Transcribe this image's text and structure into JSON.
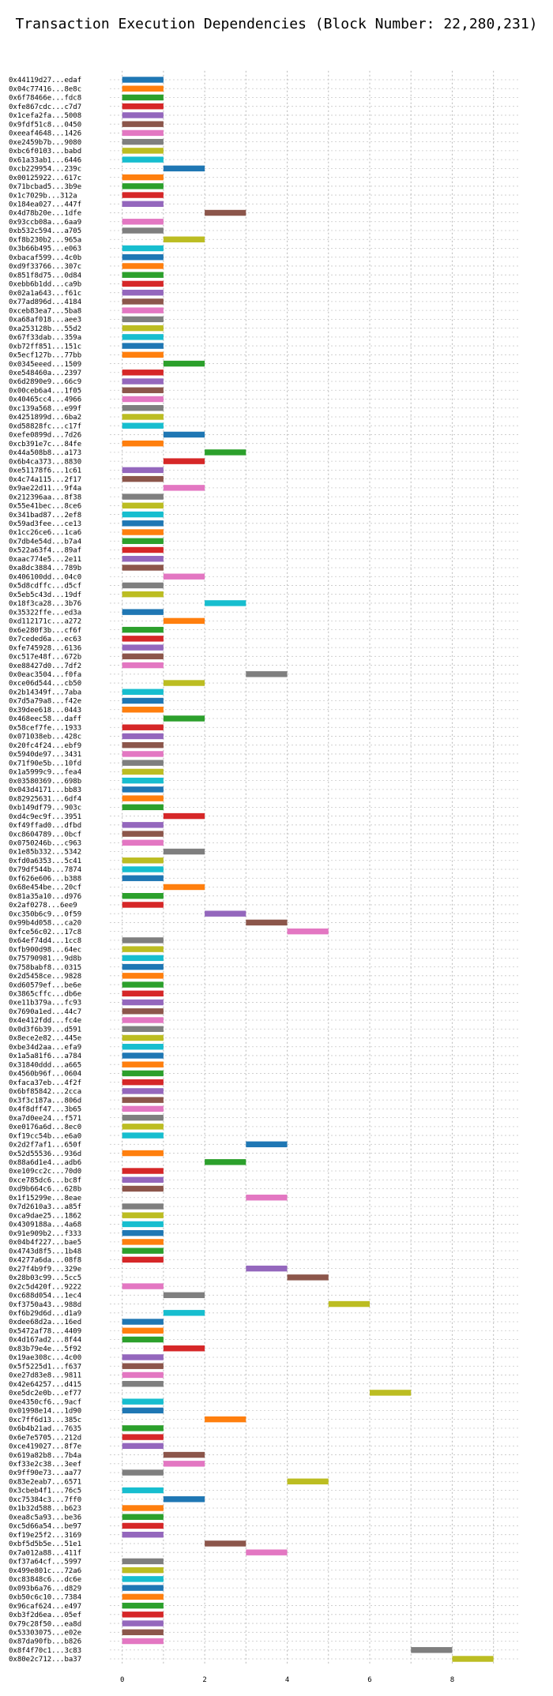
{
  "chart_data": {
    "type": "bar",
    "orientation": "horizontal",
    "chart_style": "gantt",
    "title": "Transaction Execution Dependencies (Block Number: 22,280,231)",
    "xlabel": "",
    "ylabel": "",
    "xlim": [
      -0.3,
      9.6
    ],
    "x_ticks": [
      "0",
      "2",
      "4",
      "6",
      "8"
    ],
    "grid": true,
    "grid_style": "dotted",
    "legend": "none",
    "palette": [
      "#1f77b4",
      "#ff7f0e",
      "#2ca02c",
      "#d62728",
      "#9467bd",
      "#8c564b",
      "#e377c2",
      "#7f7f7f",
      "#bcbd22",
      "#17becf"
    ],
    "transactions": [
      {
        "label": "0x44119d27...edaf",
        "start": 0,
        "end": 1
      },
      {
        "label": "0x04c77416...8e8c",
        "start": 0,
        "end": 1
      },
      {
        "label": "0x6f78466e...fdc8",
        "start": 0,
        "end": 1
      },
      {
        "label": "0xfe867cdc...c7d7",
        "start": 0,
        "end": 1
      },
      {
        "label": "0x1cefa2fa...5008",
        "start": 0,
        "end": 1
      },
      {
        "label": "0x9fdf51c8...0450",
        "start": 0,
        "end": 1
      },
      {
        "label": "0xeeaf4648...1426",
        "start": 0,
        "end": 1
      },
      {
        "label": "0xe2459b7b...9080",
        "start": 0,
        "end": 1
      },
      {
        "label": "0xbc6f0103...babd",
        "start": 0,
        "end": 1
      },
      {
        "label": "0x61a33ab1...6446",
        "start": 0,
        "end": 1
      },
      {
        "label": "0xcb229954...239c",
        "start": 1,
        "end": 2
      },
      {
        "label": "0x00125922...617c",
        "start": 0,
        "end": 1
      },
      {
        "label": "0x71bcbad5...3b9e",
        "start": 0,
        "end": 1
      },
      {
        "label": "0x1c7029b...312a",
        "start": 0,
        "end": 1
      },
      {
        "label": "0x184ea027...447f",
        "start": 0,
        "end": 1
      },
      {
        "label": "0x4d78b20e...1dfe",
        "start": 2,
        "end": 3
      },
      {
        "label": "0x93ccb08a...6aa9",
        "start": 0,
        "end": 1
      },
      {
        "label": "0xb532c594...a705",
        "start": 0,
        "end": 1
      },
      {
        "label": "0xf8b230b2...965a",
        "start": 1,
        "end": 2
      },
      {
        "label": "0x3b66b495...e063",
        "start": 0,
        "end": 1
      },
      {
        "label": "0xbacaf599...4c0b",
        "start": 0,
        "end": 1
      },
      {
        "label": "0xd9f33766...307c",
        "start": 0,
        "end": 1
      },
      {
        "label": "0x851f8d75...0d84",
        "start": 0,
        "end": 1
      },
      {
        "label": "0xebb6b1dd...ca9b",
        "start": 0,
        "end": 1
      },
      {
        "label": "0x02a1a643...f61c",
        "start": 0,
        "end": 1
      },
      {
        "label": "0x77ad896d...4184",
        "start": 0,
        "end": 1
      },
      {
        "label": "0xceb83ea7...5ba8",
        "start": 0,
        "end": 1
      },
      {
        "label": "0xa68af018...aee3",
        "start": 0,
        "end": 1
      },
      {
        "label": "0xa253128b...55d2",
        "start": 0,
        "end": 1
      },
      {
        "label": "0x67f33dab...359a",
        "start": 0,
        "end": 1
      },
      {
        "label": "0xb72ff851...151c",
        "start": 0,
        "end": 1
      },
      {
        "label": "0x5ecf127b...77bb",
        "start": 0,
        "end": 1
      },
      {
        "label": "0x0345eeed...1509",
        "start": 1,
        "end": 2
      },
      {
        "label": "0xe548460a...2397",
        "start": 0,
        "end": 1
      },
      {
        "label": "0x6d2890e9...66c9",
        "start": 0,
        "end": 1
      },
      {
        "label": "0x00ceb6a4...1f05",
        "start": 0,
        "end": 1
      },
      {
        "label": "0x40465cc4...4966",
        "start": 0,
        "end": 1
      },
      {
        "label": "0xc139a568...e99f",
        "start": 0,
        "end": 1
      },
      {
        "label": "0x4251899d...6ba2",
        "start": 0,
        "end": 1
      },
      {
        "label": "0xd58828fc...c17f",
        "start": 0,
        "end": 1
      },
      {
        "label": "0xefe0899d...7d26",
        "start": 1,
        "end": 2
      },
      {
        "label": "0xcb391e7c...84fe",
        "start": 0,
        "end": 1
      },
      {
        "label": "0x44a508b8...a173",
        "start": 2,
        "end": 3
      },
      {
        "label": "0x6b4ca373...8830",
        "start": 1,
        "end": 2
      },
      {
        "label": "0xe51178f6...1c61",
        "start": 0,
        "end": 1
      },
      {
        "label": "0x4c74a115...2f17",
        "start": 0,
        "end": 1
      },
      {
        "label": "0x9ae22d11...9f4a",
        "start": 1,
        "end": 2
      },
      {
        "label": "0x212396aa...8f38",
        "start": 0,
        "end": 1
      },
      {
        "label": "0x55e41bec...8ce6",
        "start": 0,
        "end": 1
      },
      {
        "label": "0x341bad87...2ef8",
        "start": 0,
        "end": 1
      },
      {
        "label": "0x59ad3fee...ce13",
        "start": 0,
        "end": 1
      },
      {
        "label": "0x1cc26ce6...1ca6",
        "start": 0,
        "end": 1
      },
      {
        "label": "0x7db4e54d...b7a4",
        "start": 0,
        "end": 1
      },
      {
        "label": "0x522a63f4...89af",
        "start": 0,
        "end": 1
      },
      {
        "label": "0xaac774e5...2e11",
        "start": 0,
        "end": 1
      },
      {
        "label": "0xa8dc3884...789b",
        "start": 0,
        "end": 1
      },
      {
        "label": "0x406100dd...04c0",
        "start": 1,
        "end": 2
      },
      {
        "label": "0x5d8cdffc...d5cf",
        "start": 0,
        "end": 1
      },
      {
        "label": "0x5eb5c43d...19df",
        "start": 0,
        "end": 1
      },
      {
        "label": "0x18f3ca28...3b76",
        "start": 2,
        "end": 3
      },
      {
        "label": "0x35322ffe...ed3a",
        "start": 0,
        "end": 1
      },
      {
        "label": "0xd112171c...a272",
        "start": 1,
        "end": 2
      },
      {
        "label": "0x6e280f3b...cf6f",
        "start": 0,
        "end": 1
      },
      {
        "label": "0x7ceded6a...ec63",
        "start": 0,
        "end": 1
      },
      {
        "label": "0xfe745928...6136",
        "start": 0,
        "end": 1
      },
      {
        "label": "0xc517e48f...672b",
        "start": 0,
        "end": 1
      },
      {
        "label": "0xe88427d0...7df2",
        "start": 0,
        "end": 1
      },
      {
        "label": "0x0eac3504...f0fa",
        "start": 3,
        "end": 4
      },
      {
        "label": "0xce06d544...cb50",
        "start": 1,
        "end": 2
      },
      {
        "label": "0x2b14349f...7aba",
        "start": 0,
        "end": 1
      },
      {
        "label": "0x7d5a79a8...f42e",
        "start": 0,
        "end": 1
      },
      {
        "label": "0x39dee618...0443",
        "start": 0,
        "end": 1
      },
      {
        "label": "0x468eec58...daff",
        "start": 1,
        "end": 2
      },
      {
        "label": "0x58cef7fe...1933",
        "start": 0,
        "end": 1
      },
      {
        "label": "0x071038eb...428c",
        "start": 0,
        "end": 1
      },
      {
        "label": "0x20fc4f24...ebf9",
        "start": 0,
        "end": 1
      },
      {
        "label": "0x5940de97...3431",
        "start": 0,
        "end": 1
      },
      {
        "label": "0x71f90e5b...10fd",
        "start": 0,
        "end": 1
      },
      {
        "label": "0x1a5999c9...fea4",
        "start": 0,
        "end": 1
      },
      {
        "label": "0x03580369...698b",
        "start": 0,
        "end": 1
      },
      {
        "label": "0x043d4171...bb83",
        "start": 0,
        "end": 1
      },
      {
        "label": "0x82925631...6df4",
        "start": 0,
        "end": 1
      },
      {
        "label": "0xb149df79...903c",
        "start": 0,
        "end": 1
      },
      {
        "label": "0xd4c9ec9f...3951",
        "start": 1,
        "end": 2
      },
      {
        "label": "0xf49ffad0...dfbd",
        "start": 0,
        "end": 1
      },
      {
        "label": "0xc8604789...0bcf",
        "start": 0,
        "end": 1
      },
      {
        "label": "0x0750246b...c963",
        "start": 0,
        "end": 1
      },
      {
        "label": "0x1e85b332...5342",
        "start": 1,
        "end": 2
      },
      {
        "label": "0xfd0a6353...5c41",
        "start": 0,
        "end": 1
      },
      {
        "label": "0x79df544b...7874",
        "start": 0,
        "end": 1
      },
      {
        "label": "0xf626e606...b388",
        "start": 0,
        "end": 1
      },
      {
        "label": "0x68e454be...20cf",
        "start": 1,
        "end": 2
      },
      {
        "label": "0x81a35a10...d976",
        "start": 0,
        "end": 1
      },
      {
        "label": "0x2af0278...6ee9",
        "start": 0,
        "end": 1
      },
      {
        "label": "0xc350b6c9...0f59",
        "start": 2,
        "end": 3
      },
      {
        "label": "0x99b4d058...ca20",
        "start": 3,
        "end": 4
      },
      {
        "label": "0xfce56c02...17c8",
        "start": 4,
        "end": 5
      },
      {
        "label": "0x64ef74d4...1cc8",
        "start": 0,
        "end": 1
      },
      {
        "label": "0xfb900d98...64ec",
        "start": 0,
        "end": 1
      },
      {
        "label": "0x75790981...9d8b",
        "start": 0,
        "end": 1
      },
      {
        "label": "0x758babf8...0315",
        "start": 0,
        "end": 1
      },
      {
        "label": "0x2d5458ce...9828",
        "start": 0,
        "end": 1
      },
      {
        "label": "0xd60579ef...be6e",
        "start": 0,
        "end": 1
      },
      {
        "label": "0x3865cffc...db6e",
        "start": 0,
        "end": 1
      },
      {
        "label": "0xe11b379a...fc93",
        "start": 0,
        "end": 1
      },
      {
        "label": "0x7690a1ed...44c7",
        "start": 0,
        "end": 1
      },
      {
        "label": "0x4e412fdd...fc4e",
        "start": 0,
        "end": 1
      },
      {
        "label": "0x0d3f6b39...d591",
        "start": 0,
        "end": 1
      },
      {
        "label": "0x8ece2e82...445e",
        "start": 0,
        "end": 1
      },
      {
        "label": "0xbe34d2aa...efa9",
        "start": 0,
        "end": 1
      },
      {
        "label": "0x1a5a81f6...a784",
        "start": 0,
        "end": 1
      },
      {
        "label": "0x31840ddd...a665",
        "start": 0,
        "end": 1
      },
      {
        "label": "0x4560b96f...0604",
        "start": 0,
        "end": 1
      },
      {
        "label": "0xfaca37eb...4f2f",
        "start": 0,
        "end": 1
      },
      {
        "label": "0x6bf85842...2cca",
        "start": 0,
        "end": 1
      },
      {
        "label": "0x3f3c187a...806d",
        "start": 0,
        "end": 1
      },
      {
        "label": "0x4f8dff47...3b65",
        "start": 0,
        "end": 1
      },
      {
        "label": "0xa7d0ee24...f571",
        "start": 0,
        "end": 1
      },
      {
        "label": "0xe0176a6d...8ec0",
        "start": 0,
        "end": 1
      },
      {
        "label": "0xf19cc54b...e6a0",
        "start": 0,
        "end": 1
      },
      {
        "label": "0x2d2f7af1...650f",
        "start": 3,
        "end": 4
      },
      {
        "label": "0x52d55536...936d",
        "start": 0,
        "end": 1
      },
      {
        "label": "0x88a6d1e4...adb6",
        "start": 2,
        "end": 3
      },
      {
        "label": "0xe109cc2c...70d0",
        "start": 0,
        "end": 1
      },
      {
        "label": "0xce785dc6...bc8f",
        "start": 0,
        "end": 1
      },
      {
        "label": "0xd9b664c6...628b",
        "start": 0,
        "end": 1
      },
      {
        "label": "0x1f15299e...8eae",
        "start": 3,
        "end": 4
      },
      {
        "label": "0x7d2610a3...a85f",
        "start": 0,
        "end": 1
      },
      {
        "label": "0xca9dae25...1862",
        "start": 0,
        "end": 1
      },
      {
        "label": "0x4309188a...4a68",
        "start": 0,
        "end": 1
      },
      {
        "label": "0x91e909b2...f333",
        "start": 0,
        "end": 1
      },
      {
        "label": "0x04b4f227...bae5",
        "start": 0,
        "end": 1
      },
      {
        "label": "0x4743d8f5...1b48",
        "start": 0,
        "end": 1
      },
      {
        "label": "0x4277a6da...08f8",
        "start": 0,
        "end": 1
      },
      {
        "label": "0x27f4b9f9...329e",
        "start": 3,
        "end": 4
      },
      {
        "label": "0x28b03c99...5cc5",
        "start": 4,
        "end": 5
      },
      {
        "label": "0x2c5d420f...9222",
        "start": 0,
        "end": 1
      },
      {
        "label": "0xc688d054...1ec4",
        "start": 1,
        "end": 2
      },
      {
        "label": "0xf3750a43...988d",
        "start": 5,
        "end": 6
      },
      {
        "label": "0xf6b29d6d...d1a9",
        "start": 1,
        "end": 2
      },
      {
        "label": "0xdee68d2a...16ed",
        "start": 0,
        "end": 1
      },
      {
        "label": "0x5472af78...4409",
        "start": 0,
        "end": 1
      },
      {
        "label": "0x4d167ad2...8f44",
        "start": 0,
        "end": 1
      },
      {
        "label": "0x83b79e4e...5f92",
        "start": 1,
        "end": 2
      },
      {
        "label": "0x19ae308c...4c00",
        "start": 0,
        "end": 1
      },
      {
        "label": "0x5f5225d1...f637",
        "start": 0,
        "end": 1
      },
      {
        "label": "0xe27d83e8...9811",
        "start": 0,
        "end": 1
      },
      {
        "label": "0x42e64257...d415",
        "start": 0,
        "end": 1
      },
      {
        "label": "0xe5dc2e0b...ef77",
        "start": 6,
        "end": 7
      },
      {
        "label": "0xe4350cf6...9acf",
        "start": 0,
        "end": 1
      },
      {
        "label": "0x01998e14...1d90",
        "start": 0,
        "end": 1
      },
      {
        "label": "0xc7ff6d13...385c",
        "start": 2,
        "end": 3
      },
      {
        "label": "0x6b4b21ad...7635",
        "start": 0,
        "end": 1
      },
      {
        "label": "0x6e7e5705...212d",
        "start": 0,
        "end": 1
      },
      {
        "label": "0xce419027...8f7e",
        "start": 0,
        "end": 1
      },
      {
        "label": "0x619a82b8...7b4a",
        "start": 1,
        "end": 2
      },
      {
        "label": "0xf33e2c38...3eef",
        "start": 1,
        "end": 2
      },
      {
        "label": "0x9ff90e73...aa77",
        "start": 0,
        "end": 1
      },
      {
        "label": "0x83e2eab7...6571",
        "start": 4,
        "end": 5
      },
      {
        "label": "0x3cbeb4f1...76c5",
        "start": 0,
        "end": 1
      },
      {
        "label": "0xc75384c3...7ff0",
        "start": 1,
        "end": 2
      },
      {
        "label": "0x1b32d588...b623",
        "start": 0,
        "end": 1
      },
      {
        "label": "0xea8c5a93...be36",
        "start": 0,
        "end": 1
      },
      {
        "label": "0xc5d66a54...be97",
        "start": 0,
        "end": 1
      },
      {
        "label": "0xf19e25f2...3169",
        "start": 0,
        "end": 1
      },
      {
        "label": "0xbf5d5b5e...51e1",
        "start": 2,
        "end": 3
      },
      {
        "label": "0x7a012a88...411f",
        "start": 3,
        "end": 4
      },
      {
        "label": "0xf37a64cf...5997",
        "start": 0,
        "end": 1
      },
      {
        "label": "0x499e801c...72a6",
        "start": 0,
        "end": 1
      },
      {
        "label": "0xc83848c6...dc6e",
        "start": 0,
        "end": 1
      },
      {
        "label": "0x093b6a76...d829",
        "start": 0,
        "end": 1
      },
      {
        "label": "0xb50c6c10...7384",
        "start": 0,
        "end": 1
      },
      {
        "label": "0x96caf624...e497",
        "start": 0,
        "end": 1
      },
      {
        "label": "0xb3f2d6ea...05ef",
        "start": 0,
        "end": 1
      },
      {
        "label": "0x79c28f50...ea8d",
        "start": 0,
        "end": 1
      },
      {
        "label": "0x53303075...e02e",
        "start": 0,
        "end": 1
      },
      {
        "label": "0x87da90fb...b826",
        "start": 0,
        "end": 1
      },
      {
        "label": "0x8f4f70c1...3c83",
        "start": 7,
        "end": 8
      },
      {
        "label": "0x80e2c712...ba37",
        "start": 8,
        "end": 9
      }
    ]
  }
}
